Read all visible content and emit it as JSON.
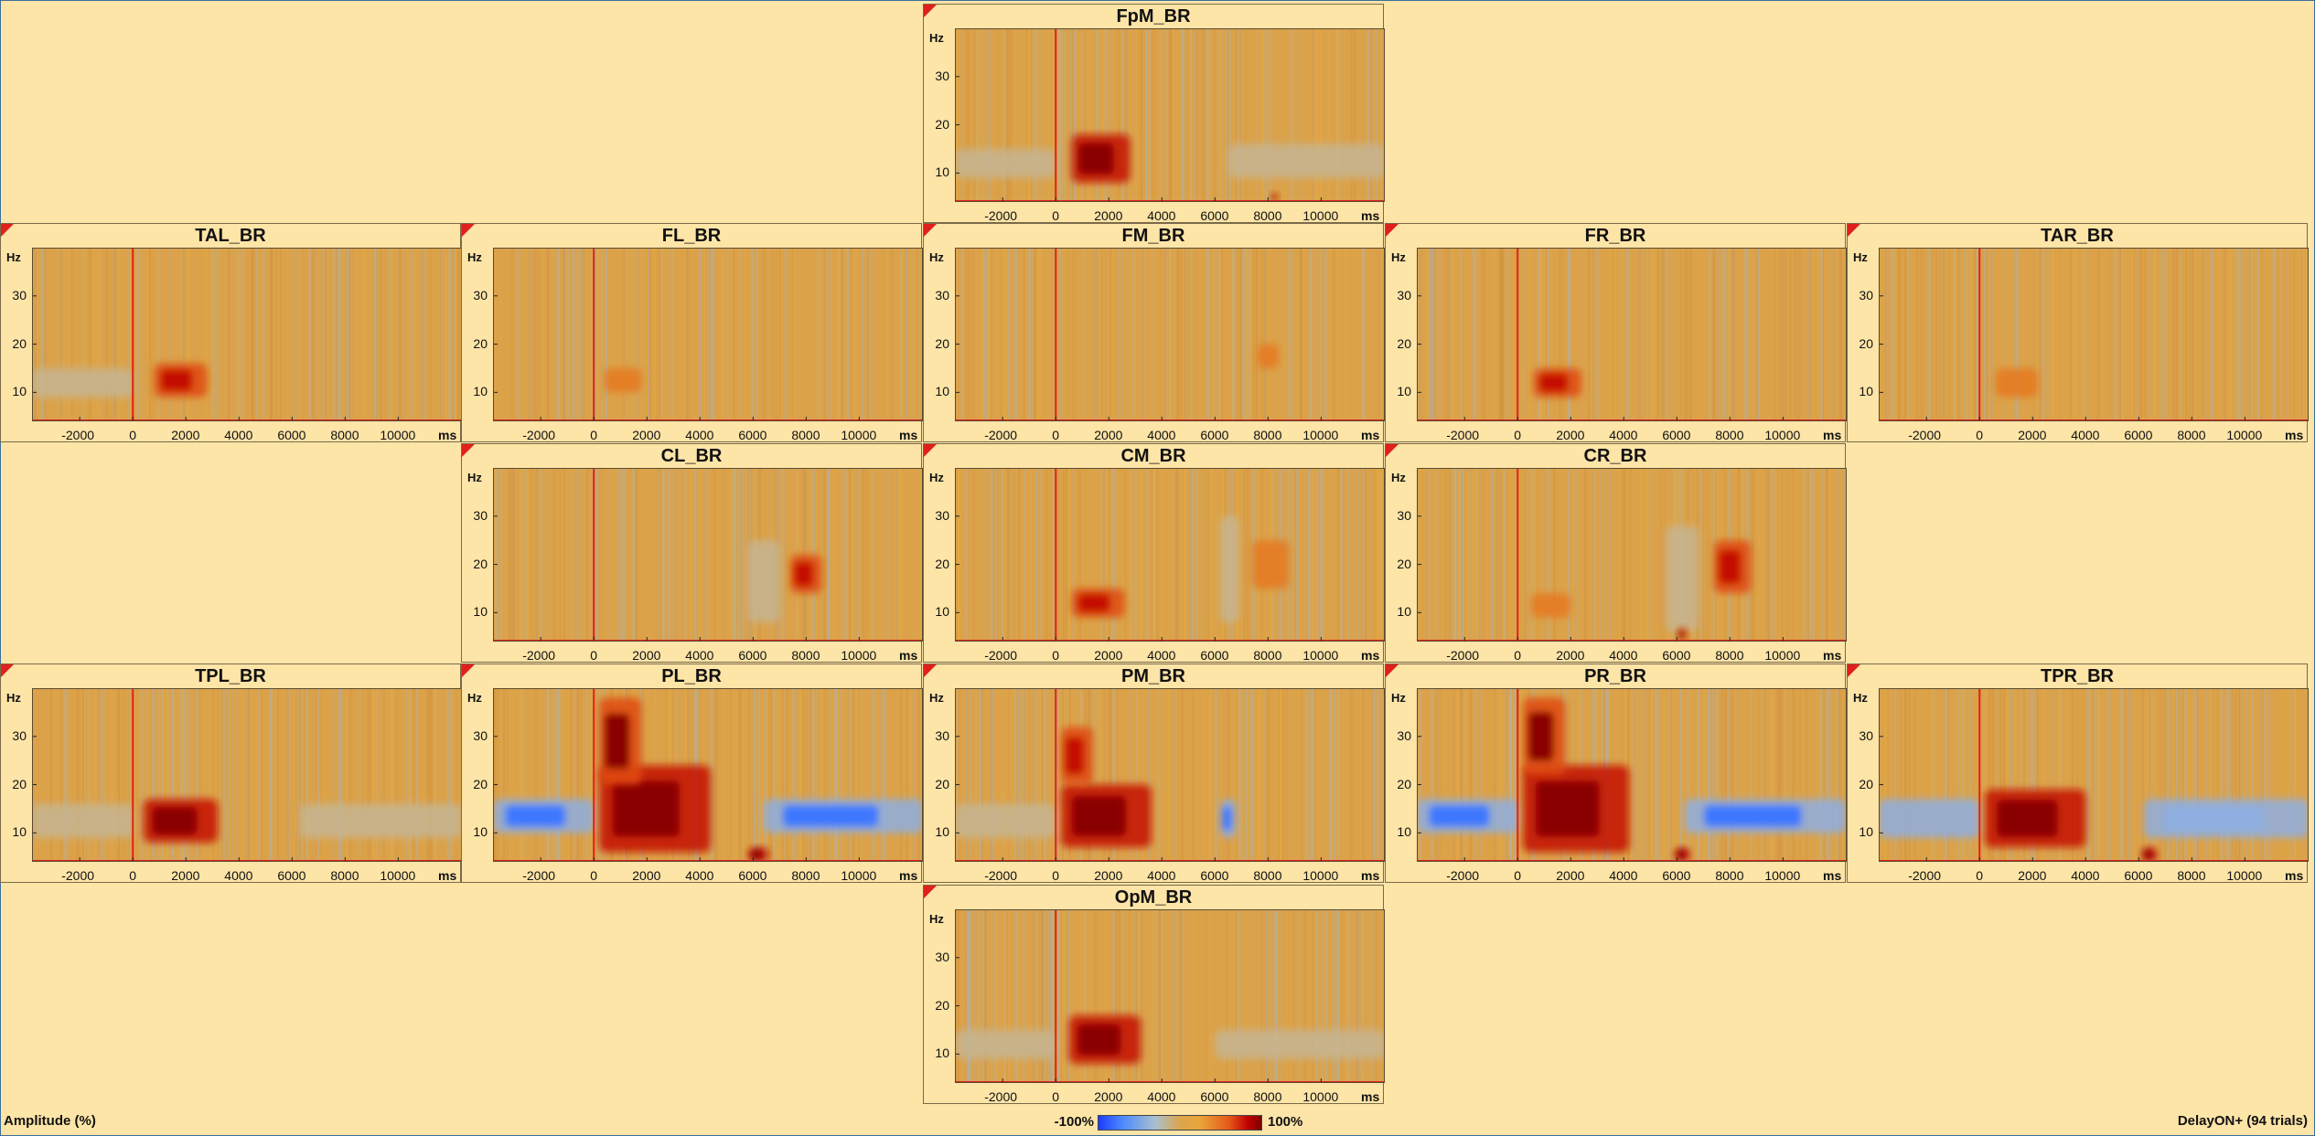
{
  "chart_data": {
    "type": "heatmap",
    "colorbar": {
      "label": "Amplitude (%)",
      "min_label": "-100%",
      "max_label": "100%",
      "colors": [
        "#1e3cff",
        "#a9c0ce",
        "#e8a63a",
        "#c00000",
        "#7a0000"
      ]
    },
    "condition": "DelayON+ (94 trials)",
    "x_axis": {
      "unit": "ms",
      "range": [
        -3800,
        12400
      ],
      "ticks": [
        -2000,
        0,
        2000,
        4000,
        6000,
        8000,
        10000
      ],
      "event_marker": 0
    },
    "y_axis": {
      "unit": "Hz",
      "range": [
        4,
        40
      ],
      "ticks": [
        10,
        20,
        30
      ]
    },
    "channels": [
      {
        "name": "FpM_BR",
        "row": 0,
        "col": 2,
        "blobs": [
          {
            "t": [
              600,
              2800
            ],
            "f": [
              8,
              18
            ],
            "amp": 1.0
          },
          {
            "t": [
              -3800,
              0
            ],
            "f": [
              9,
              15
            ],
            "amp": -0.25
          },
          {
            "t": [
              6500,
              12400
            ],
            "f": [
              9,
              16
            ],
            "amp": -0.25
          },
          {
            "t": [
              8100,
              8400
            ],
            "f": [
              4,
              6
            ],
            "amp": 0.8
          }
        ]
      },
      {
        "name": "TAL_BR",
        "row": 1,
        "col": 0,
        "blobs": [
          {
            "t": [
              800,
              2800
            ],
            "f": [
              9,
              16
            ],
            "amp": 0.55
          },
          {
            "t": [
              -3800,
              0
            ],
            "f": [
              9,
              15
            ],
            "amp": -0.15
          }
        ]
      },
      {
        "name": "FL_BR",
        "row": 1,
        "col": 1,
        "blobs": [
          {
            "t": [
              400,
              1800
            ],
            "f": [
              10,
              15
            ],
            "amp": 0.3
          }
        ]
      },
      {
        "name": "FM_BR",
        "row": 1,
        "col": 2,
        "blobs": [
          {
            "t": [
              7600,
              8400
            ],
            "f": [
              15,
              20
            ],
            "amp": 0.3
          }
        ]
      },
      {
        "name": "FR_BR",
        "row": 1,
        "col": 3,
        "blobs": [
          {
            "t": [
              600,
              2400
            ],
            "f": [
              9,
              15
            ],
            "amp": 0.55
          }
        ]
      },
      {
        "name": "TAR_BR",
        "row": 1,
        "col": 4,
        "blobs": [
          {
            "t": [
              600,
              2200
            ],
            "f": [
              9,
              15
            ],
            "amp": 0.3
          }
        ]
      },
      {
        "name": "CL_BR",
        "row": 2,
        "col": 1,
        "blobs": [
          {
            "t": [
              7400,
              8600
            ],
            "f": [
              14,
              22
            ],
            "amp": 0.6
          },
          {
            "t": [
              5800,
              7000
            ],
            "f": [
              8,
              25
            ],
            "amp": -0.2
          }
        ]
      },
      {
        "name": "CM_BR",
        "row": 2,
        "col": 2,
        "blobs": [
          {
            "t": [
              600,
              2600
            ],
            "f": [
              9,
              15
            ],
            "amp": 0.65
          },
          {
            "t": [
              6200,
              6900
            ],
            "f": [
              8,
              30
            ],
            "amp": -0.4
          },
          {
            "t": [
              7400,
              8800
            ],
            "f": [
              15,
              25
            ],
            "amp": 0.45
          }
        ]
      },
      {
        "name": "CR_BR",
        "row": 2,
        "col": 3,
        "blobs": [
          {
            "t": [
              7400,
              8800
            ],
            "f": [
              14,
              25
            ],
            "amp": 0.6
          },
          {
            "t": [
              5600,
              6800
            ],
            "f": [
              6,
              28
            ],
            "amp": -0.2
          },
          {
            "t": [
              500,
              2000
            ],
            "f": [
              9,
              14
            ],
            "amp": 0.25
          },
          {
            "t": [
              6000,
              6400
            ],
            "f": [
              4,
              7
            ],
            "amp": 0.8
          }
        ]
      },
      {
        "name": "TPL_BR",
        "row": 3,
        "col": 0,
        "blobs": [
          {
            "t": [
              400,
              3200
            ],
            "f": [
              8,
              17
            ],
            "amp": 0.95
          },
          {
            "t": [
              -3800,
              0
            ],
            "f": [
              9,
              16
            ],
            "amp": -0.25
          },
          {
            "t": [
              6300,
              12400
            ],
            "f": [
              9,
              16
            ],
            "amp": -0.3
          }
        ]
      },
      {
        "name": "PL_BR",
        "row": 3,
        "col": 1,
        "blobs": [
          {
            "t": [
              200,
              4400
            ],
            "f": [
              6,
              24
            ],
            "amp": 1.0
          },
          {
            "t": [
              200,
              1800
            ],
            "f": [
              20,
              38
            ],
            "amp": 0.8
          },
          {
            "t": [
              -3800,
              0
            ],
            "f": [
              10,
              17
            ],
            "amp": -0.9
          },
          {
            "t": [
              6400,
              12400
            ],
            "f": [
              10,
              17
            ],
            "amp": -0.85
          },
          {
            "t": [
              5800,
              6600
            ],
            "f": [
              4,
              7
            ],
            "amp": 1.0
          }
        ]
      },
      {
        "name": "PM_BR",
        "row": 3,
        "col": 2,
        "blobs": [
          {
            "t": [
              200,
              3600
            ],
            "f": [
              7,
              20
            ],
            "amp": 1.0
          },
          {
            "t": [
              200,
              1400
            ],
            "f": [
              20,
              32
            ],
            "amp": 0.6
          },
          {
            "t": [
              -3800,
              0
            ],
            "f": [
              9,
              16
            ],
            "amp": -0.4
          },
          {
            "t": [
              6200,
              6800
            ],
            "f": [
              9,
              17
            ],
            "amp": -0.6
          }
        ]
      },
      {
        "name": "PR_BR",
        "row": 3,
        "col": 3,
        "blobs": [
          {
            "t": [
              200,
              4200
            ],
            "f": [
              6,
              24
            ],
            "amp": 1.0
          },
          {
            "t": [
              200,
              1800
            ],
            "f": [
              22,
              38
            ],
            "amp": 0.8
          },
          {
            "t": [
              -3800,
              0
            ],
            "f": [
              10,
              17
            ],
            "amp": -0.9
          },
          {
            "t": [
              6300,
              12400
            ],
            "f": [
              10,
              17
            ],
            "amp": -0.85
          },
          {
            "t": [
              5900,
              6500
            ],
            "f": [
              4,
              7
            ],
            "amp": 1.0
          }
        ]
      },
      {
        "name": "TPR_BR",
        "row": 3,
        "col": 4,
        "blobs": [
          {
            "t": [
              200,
              4000
            ],
            "f": [
              7,
              19
            ],
            "amp": 1.0
          },
          {
            "t": [
              -3800,
              0
            ],
            "f": [
              9,
              17
            ],
            "amp": -0.5
          },
          {
            "t": [
              6200,
              12400
            ],
            "f": [
              9,
              17
            ],
            "amp": -0.55
          },
          {
            "t": [
              6100,
              6700
            ],
            "f": [
              4,
              7
            ],
            "amp": 0.9
          }
        ]
      },
      {
        "name": "OpM_BR",
        "row": 4,
        "col": 2,
        "blobs": [
          {
            "t": [
              500,
              3200
            ],
            "f": [
              8,
              18
            ],
            "amp": 1.0
          },
          {
            "t": [
              -3800,
              0
            ],
            "f": [
              9,
              15
            ],
            "amp": -0.3
          },
          {
            "t": [
              6000,
              12400
            ],
            "f": [
              9,
              15
            ],
            "amp": -0.3
          }
        ]
      }
    ]
  },
  "footer": {
    "left": "Amplitude (%)",
    "right": "DelayON+ (94 trials)"
  }
}
